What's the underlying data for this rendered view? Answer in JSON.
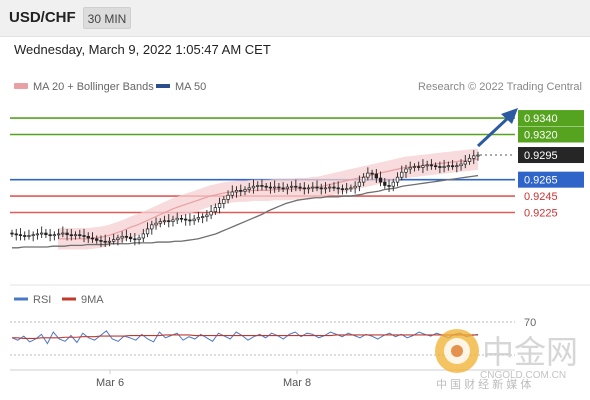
{
  "header": {
    "symbol": "USD/CHF",
    "timeframe": "30 MIN",
    "datetime": "Wednesday, March 9, 2022 1:05:47 AM CET"
  },
  "chart_data": [
    {
      "type": "line",
      "legend": [
        {
          "name": "MA 20 + Bollinger Bands",
          "color": "#e8a0a4"
        },
        {
          "name": "MA 50",
          "color": "#2b4e8c"
        }
      ],
      "legend_position": "top-left",
      "credit": "Research © 2022 Trading Central",
      "x_ticks": [
        "Mar 6",
        "Mar 8"
      ],
      "grid": false,
      "levels": [
        {
          "value": "0.9340",
          "color": "#55a31f",
          "label_bg": "#55a31f",
          "label_color": "#ffffff",
          "style": "solid"
        },
        {
          "value": "0.9320",
          "color": "#55a31f",
          "label_bg": "#55a31f",
          "label_color": "#ffffff",
          "style": "solid"
        },
        {
          "value": "0.9295",
          "color": "#555555",
          "label_bg": "#262626",
          "label_color": "#ffffff",
          "style": "dotted"
        },
        {
          "value": "0.9265",
          "color": "#2f64c8",
          "label_bg": "#2f64c8",
          "label_color": "#ffffff",
          "style": "solid"
        },
        {
          "value": "0.9245",
          "color": "#e05a5a",
          "label_bg": "none",
          "label_color": "#cc3333",
          "style": "solid"
        },
        {
          "value": "0.9225",
          "color": "#e05a5a",
          "label_bg": "none",
          "label_color": "#cc3333",
          "style": "solid"
        }
      ],
      "ylim": [
        0.9155,
        0.9362
      ],
      "arrow_direction": "up",
      "series_price": [
        0.9199,
        0.9198,
        0.9197,
        0.9196,
        0.9197,
        0.9198,
        0.9199,
        0.92,
        0.9198,
        0.9197,
        0.9198,
        0.9199,
        0.92,
        0.9198,
        0.9197,
        0.9198,
        0.9197,
        0.9196,
        0.9194,
        0.9193,
        0.9191,
        0.919,
        0.9189,
        0.919,
        0.9192,
        0.9194,
        0.9196,
        0.9195,
        0.9193,
        0.9192,
        0.9194,
        0.9199,
        0.9205,
        0.921,
        0.9212,
        0.9214,
        0.9215,
        0.9214,
        0.9216,
        0.9218,
        0.9217,
        0.9216,
        0.9215,
        0.9217,
        0.9219,
        0.922,
        0.9222,
        0.9226,
        0.9231,
        0.9236,
        0.9241,
        0.9246,
        0.925,
        0.9252,
        0.9251,
        0.9253,
        0.9255,
        0.9257,
        0.9258,
        0.9257,
        0.9256,
        0.9255,
        0.9256,
        0.9255,
        0.9254,
        0.9256,
        0.9257,
        0.9256,
        0.9255,
        0.9254,
        0.9255,
        0.9256,
        0.9255,
        0.9254,
        0.9255,
        0.9256,
        0.9255,
        0.9254,
        0.9253,
        0.9254,
        0.9255,
        0.9257,
        0.9262,
        0.9268,
        0.9273,
        0.9272,
        0.9267,
        0.9262,
        0.9258,
        0.9257,
        0.9262,
        0.9268,
        0.9274,
        0.9278,
        0.928,
        0.9281,
        0.928,
        0.9282,
        0.9283,
        0.9282,
        0.9281,
        0.928,
        0.9281,
        0.9282,
        0.9281,
        0.9282,
        0.9284,
        0.9287,
        0.9291,
        0.9294,
        0.9295
      ],
      "series_ma50": [
        0.9182,
        0.9182,
        0.9183,
        0.9183,
        0.9183,
        0.9183,
        0.9183,
        0.9184,
        0.9184,
        0.9184,
        0.9185,
        0.9185,
        0.9185,
        0.9186,
        0.9186,
        0.9186,
        0.9186,
        0.9187,
        0.9187,
        0.9187,
        0.9187,
        0.9188,
        0.9188,
        0.9188,
        0.9188,
        0.9189,
        0.9189,
        0.9189,
        0.919,
        0.919,
        0.9191,
        0.9192,
        0.9193,
        0.9195,
        0.9197,
        0.9199,
        0.9202,
        0.9205,
        0.9208,
        0.9211,
        0.9214,
        0.9217,
        0.922,
        0.9223,
        0.9227,
        0.923,
        0.9233,
        0.9236,
        0.9238,
        0.924,
        0.9241,
        0.9242,
        0.9243,
        0.9243,
        0.9244,
        0.9244,
        0.9244,
        0.9245,
        0.9245,
        0.9246,
        0.9247,
        0.9249,
        0.925,
        0.9251,
        0.9253,
        0.9254,
        0.9255,
        0.9257,
        0.9258,
        0.9259,
        0.926,
        0.9261,
        0.9262,
        0.9263,
        0.9264,
        0.9265,
        0.9266,
        0.9267,
        0.9268,
        0.9269,
        0.927
      ],
      "series_ma20": [
        0.9193,
        0.9193,
        0.9193,
        0.9193,
        0.9193,
        0.9194,
        0.9195,
        0.9197,
        0.92,
        0.9203,
        0.9207,
        0.921,
        0.9214,
        0.9218,
        0.9222,
        0.9226,
        0.923,
        0.9233,
        0.9236,
        0.9239,
        0.9242,
        0.9245,
        0.9247,
        0.9249,
        0.925,
        0.9251,
        0.9251,
        0.9252,
        0.9252,
        0.9252,
        0.9253,
        0.9253,
        0.9253,
        0.9254,
        0.9254,
        0.9255,
        0.9256,
        0.9258,
        0.926,
        0.9262,
        0.9264,
        0.9266,
        0.9268,
        0.927,
        0.9272,
        0.9274,
        0.9276,
        0.9278,
        0.928,
        0.9281,
        0.9282,
        0.9283,
        0.9284,
        0.9285,
        0.9286,
        0.9287,
        0.9288,
        0.9289,
        0.929
      ],
      "boll_width": 0.0013
    },
    {
      "type": "line",
      "legend": [
        {
          "name": "RSI",
          "color": "#4a78c8"
        },
        {
          "name": "9MA",
          "color": "#c0392b"
        }
      ],
      "y_ticks": [
        "70"
      ],
      "ylim": [
        0,
        100
      ],
      "rsi": [
        52,
        48,
        55,
        45,
        50,
        58,
        42,
        62,
        50,
        46,
        56,
        44,
        60,
        52,
        48,
        56,
        64,
        50,
        46,
        55,
        52,
        48,
        58,
        50,
        45,
        62,
        52,
        56,
        60,
        48,
        54,
        50,
        58,
        52,
        46,
        60,
        55,
        50,
        62,
        56,
        48,
        54,
        58,
        52,
        60,
        56,
        50,
        58,
        62,
        54,
        60,
        58,
        52,
        56,
        62,
        58,
        54,
        60,
        56,
        52,
        58,
        55,
        50,
        56,
        60,
        54,
        58,
        52,
        56,
        62,
        58,
        55,
        60,
        56,
        52,
        58,
        60,
        54,
        56,
        58
      ],
      "rsi_ma": [
        52,
        52,
        51,
        51,
        51,
        52,
        52,
        52,
        52,
        53,
        53,
        53,
        54,
        54,
        54,
        55,
        55,
        55,
        55,
        55,
        56,
        56,
        56,
        56,
        56,
        56,
        57,
        57,
        57,
        57,
        57,
        56,
        56,
        56,
        56,
        56,
        56,
        56,
        56,
        56,
        56,
        56,
        56,
        56,
        56,
        56,
        56,
        56,
        56,
        56,
        56,
        56,
        56,
        56,
        56,
        57,
        57,
        57,
        57,
        57,
        57,
        57,
        57,
        57,
        57,
        57,
        57,
        57,
        57,
        57,
        57,
        57,
        57,
        57,
        57,
        57,
        57,
        57,
        57,
        57
      ]
    }
  ],
  "watermark": {
    "name": "中金网",
    "url": "CNGOLD.COM.CN",
    "slogan": "中 国 财 经 新 媒 体"
  }
}
